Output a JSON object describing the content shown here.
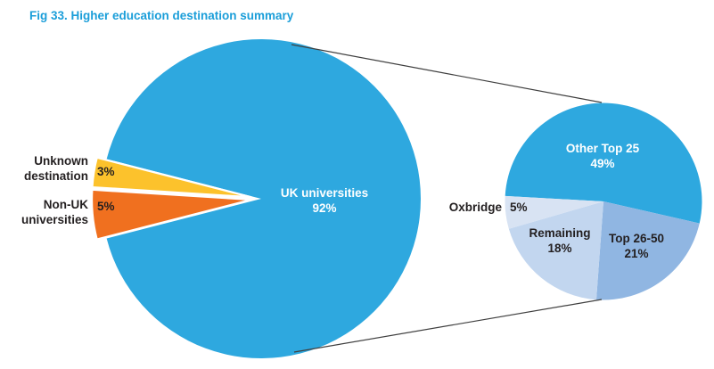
{
  "figure": {
    "title": "Fig 33. Higher education destination summary",
    "title_color": "#1B9ED9",
    "background": "#FFFFFF"
  },
  "chart_data": {
    "type": "pie",
    "variant": "pie-of-pie",
    "title": "Fig 33. Higher education destination summary",
    "connector_color": "#3F3F3F",
    "main_pie": {
      "total_pct": 100,
      "slices": [
        {
          "label": "UK universities",
          "pct": 92,
          "pct_label": "92%",
          "color": "#2EA8DF",
          "text_color": "#FFFFFF",
          "exploded": false
        },
        {
          "label": "Non-UK universities",
          "pct": 5,
          "pct_label": "5%",
          "color": "#F0701F",
          "text_color": "#231F20",
          "exploded": true
        },
        {
          "label": "Unknown destination",
          "pct": 3,
          "pct_label": "3%",
          "color": "#FCC22C",
          "text_color": "#231F20",
          "exploded": true
        }
      ]
    },
    "secondary_pie": {
      "represents": "UK universities",
      "total_pct": 93,
      "slices": [
        {
          "label": "Other Top 25",
          "pct": 49,
          "pct_label": "49%",
          "color": "#2EA8DF",
          "text_color": "#FFFFFF"
        },
        {
          "label": "Top 26-50",
          "pct": 21,
          "pct_label": "21%",
          "color": "#90B6E2",
          "text_color": "#231F20"
        },
        {
          "label": "Remaining",
          "pct": 18,
          "pct_label": "18%",
          "color": "#C2D6EF",
          "text_color": "#231F20"
        },
        {
          "label": "Oxbridge",
          "pct": 5,
          "pct_label": "5%",
          "color": "#D8E3F3",
          "text_color": "#231F20"
        }
      ]
    }
  }
}
